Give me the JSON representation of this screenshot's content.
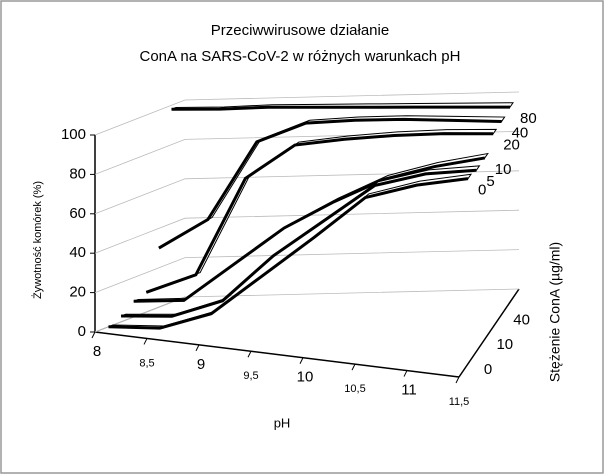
{
  "chart_data": {
    "type": "ribbon3d",
    "title": [
      "Przeciwwirusowe działanie",
      "ConA na SARS-CoV-2 w różnych warunkach pH"
    ],
    "ylabel": "Żywotność komórek (%)",
    "xlabel": "pH",
    "zlabel": "Stężenie ConA (µg/ml)",
    "x": [
      8,
      8.5,
      9,
      9.5,
      10,
      10.5,
      11,
      11.5
    ],
    "xlim": [
      8,
      11.5
    ],
    "xticks": [
      8,
      {
        "value": 8.5,
        "label": "8,5"
      },
      9,
      {
        "value": 9.5,
        "label": "9,5"
      },
      10,
      {
        "value": 10.5,
        "label": "10,5"
      },
      11,
      {
        "value": 11.5,
        "label": "11,5"
      }
    ],
    "ylim": [
      0,
      100
    ],
    "yticks": [
      0,
      20,
      40,
      60,
      80,
      100
    ],
    "zticks": [
      "0",
      "10",
      "40"
    ],
    "grid": true,
    "color": "#000000",
    "series": [
      {
        "name": "0",
        "values": [
          0,
          2,
          12,
          34,
          56,
          79,
          88,
          94
        ]
      },
      {
        "name": "5",
        "values": [
          3,
          5,
          15,
          40,
          60,
          80,
          88,
          92
        ]
      },
      {
        "name": "10",
        "values": [
          8,
          10,
          30,
          50,
          65,
          78,
          86,
          92
        ]
      },
      {
        "name": "20",
        "values": [
          10,
          20,
          70,
          88,
          92,
          95,
          97,
          98
        ]
      },
      {
        "name": "40",
        "values": [
          30,
          45,
          85,
          95,
          97,
          98,
          98,
          98
        ]
      },
      {
        "name": "80",
        "values": [
          98,
          98,
          99,
          99,
          99,
          99,
          99,
          99
        ]
      }
    ]
  }
}
